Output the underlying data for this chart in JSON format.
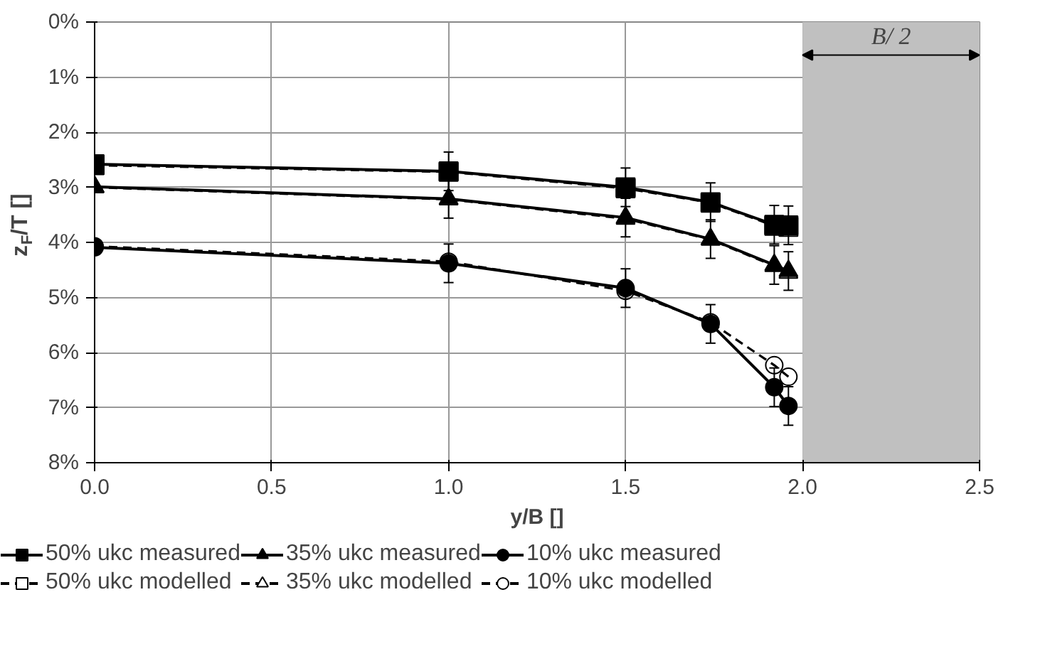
{
  "chart_data": {
    "type": "line",
    "xlabel": "y/B []",
    "ylabel": "z$_{F}$/T []",
    "xlim": [
      0,
      2.5
    ],
    "xticks": [
      {
        "value": 0,
        "label": "0.0"
      },
      {
        "value": 0.5,
        "label": "0.5"
      },
      {
        "value": 1,
        "label": "1.0"
      },
      {
        "value": 1.5,
        "label": "1.5"
      },
      {
        "value": 2,
        "label": "2.0"
      },
      {
        "value": 2.5,
        "label": "2.5"
      }
    ],
    "ylim": [
      8,
      0
    ],
    "yticks": [
      {
        "value": 0,
        "label": "0%"
      },
      {
        "value": 1,
        "label": "1%"
      },
      {
        "value": 2,
        "label": "2%"
      },
      {
        "value": 3,
        "label": "3%"
      },
      {
        "value": 4,
        "label": "4%"
      },
      {
        "value": 5,
        "label": "5%"
      },
      {
        "value": 6,
        "label": "6%"
      },
      {
        "value": 7,
        "label": "7%"
      },
      {
        "value": 8,
        "label": "8%"
      }
    ],
    "grid": true,
    "legend": "bottom",
    "bands": [
      {
        "axis": "x",
        "from": 2.0,
        "to": 2.5,
        "label": "B/ 2",
        "color": "#c0c0c0"
      }
    ],
    "series": [
      {
        "name": "50% ukc measured",
        "color": "#000000",
        "marker": "square",
        "line_style": "solid",
        "x": [
          0,
          1,
          1.5,
          1.74,
          1.92,
          1.96
        ],
        "values": [
          2.58,
          2.71,
          3.0,
          3.27,
          3.68,
          3.69
        ],
        "errors": [
          null,
          0.35,
          0.35,
          0.35,
          0.35,
          0.35
        ]
      },
      {
        "name": "35% ukc measured",
        "color": "#000000",
        "marker": "triangle",
        "line_style": "solid",
        "x": [
          0,
          1,
          1.5,
          1.74,
          1.92,
          1.96
        ],
        "values": [
          2.99,
          3.21,
          3.55,
          3.94,
          4.41,
          4.52
        ],
        "errors": [
          null,
          0.35,
          0.35,
          0.35,
          0.35,
          0.35
        ]
      },
      {
        "name": "10% ukc measured",
        "color": "#000000",
        "marker": "circle",
        "line_style": "solid",
        "x": [
          0,
          1,
          1.5,
          1.74,
          1.92,
          1.96
        ],
        "values": [
          4.09,
          4.38,
          4.83,
          5.48,
          6.63,
          6.97
        ],
        "errors": [
          null,
          0.35,
          0.35,
          0.35,
          0.35,
          0.35
        ]
      },
      {
        "name": "50% ukc modelled",
        "color": "#000000",
        "marker": "square",
        "line_style": "dashed",
        "x": [
          0,
          1,
          1.5,
          1.74,
          1.92,
          1.96
        ],
        "values": [
          2.6,
          2.72,
          3.02,
          3.28,
          3.7,
          3.72
        ]
      },
      {
        "name": "35% ukc modelled",
        "color": "#000000",
        "marker": "triangle",
        "line_style": "dashed",
        "x": [
          0,
          1,
          1.5,
          1.74,
          1.92,
          1.96
        ],
        "values": [
          3.0,
          3.22,
          3.57,
          3.95,
          4.43,
          4.55
        ]
      },
      {
        "name": "10% ukc modelled",
        "color": "#000000",
        "marker": "circle",
        "line_style": "dashed",
        "x": [
          0,
          1,
          1.5,
          1.74,
          1.92,
          1.96
        ],
        "values": [
          4.07,
          4.35,
          4.88,
          5.45,
          6.23,
          6.44
        ]
      }
    ]
  }
}
